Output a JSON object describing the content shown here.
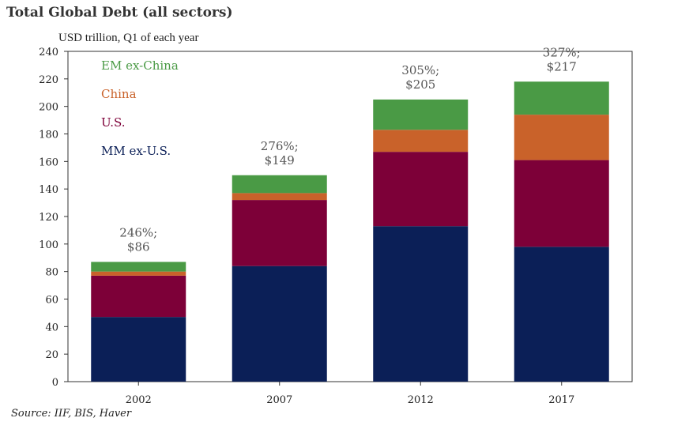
{
  "header": {
    "title": "Total Global Debt (all sectors)",
    "unit_label": "USD trillion, Q1 of each year"
  },
  "footer": {
    "source": "Source: IIF, BIS, Haver"
  },
  "colors": {
    "mm_ex_us": "#0b1f57",
    "us": "#7d0038",
    "china": "#c9622a",
    "em_ex_china": "#4a9a45",
    "axis": "#333333",
    "label": "#555555"
  },
  "chart_data": {
    "type": "bar",
    "stacked": true,
    "title": "Total Global Debt (all sectors)",
    "ylabel": "USD trillion, Q1 of each year",
    "xlabel": "",
    "ylim": [
      0,
      240
    ],
    "yticks": [
      0,
      20,
      40,
      60,
      80,
      100,
      120,
      140,
      160,
      180,
      200,
      220,
      240
    ],
    "grid": false,
    "legend_position": "top-left",
    "categories": [
      "2002",
      "2007",
      "2012",
      "2017"
    ],
    "series": [
      {
        "name": "MM ex-U.S.",
        "key": "mm_ex_us",
        "values": [
          47,
          84,
          113,
          98
        ]
      },
      {
        "name": "U.S.",
        "key": "us",
        "values": [
          30,
          48,
          54,
          63
        ]
      },
      {
        "name": "China",
        "key": "china",
        "values": [
          3,
          5,
          16,
          33
        ]
      },
      {
        "name": "EM ex-China",
        "key": "em_ex_china",
        "values": [
          7,
          13,
          22,
          24
        ]
      }
    ],
    "legend_order": [
      "EM ex-China",
      "China",
      "U.S.",
      "MM ex-U.S."
    ],
    "annotations": [
      {
        "category": "2002",
        "line1": "246%;",
        "line2": "$86"
      },
      {
        "category": "2007",
        "line1": "276%;",
        "line2": "$149"
      },
      {
        "category": "2012",
        "line1": "305%;",
        "line2": "$205"
      },
      {
        "category": "2017",
        "line1": "327%;",
        "line2": "$217"
      }
    ]
  }
}
